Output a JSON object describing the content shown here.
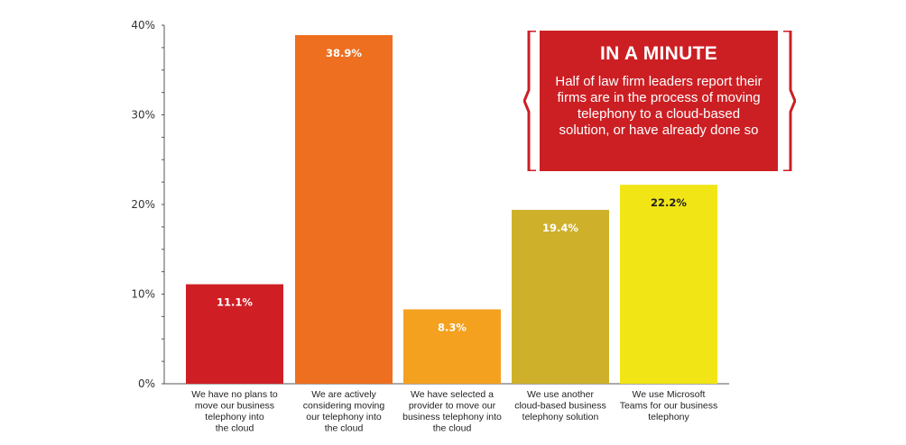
{
  "colors": {
    "bar1": "#cf1f25",
    "bar2": "#ed6f1f",
    "bar3": "#f4a11f",
    "bar4": "#cfb02b",
    "bar5": "#f1e516",
    "callout_bg": "#cc1f24",
    "axis": "#555555"
  },
  "callout": {
    "title": "IN A MINUTE",
    "text": "Half of law firm leaders report their firms are in the process of moving telephony to a cloud-based solution, or have already done so"
  },
  "chart_data": {
    "type": "bar",
    "categories": [
      [
        "We have no plans to",
        "move our business",
        "telephony into",
        "the cloud"
      ],
      [
        "We are actively",
        "considering moving",
        "our telephony into",
        "the cloud"
      ],
      [
        "We have selected a",
        "provider to move our",
        "business telephony into",
        "the cloud"
      ],
      [
        "We use another",
        "cloud-based business",
        "telephony solution"
      ],
      [
        "We use Microsoft",
        "Teams for our business",
        "telephony"
      ]
    ],
    "values": [
      11.1,
      38.9,
      8.3,
      19.4,
      22.2
    ],
    "value_labels": [
      "11.1%",
      "38.9%",
      "8.3%",
      "19.4%",
      "22.2%"
    ],
    "y_ticks": [
      0,
      10,
      20,
      30,
      40
    ],
    "y_tick_labels": [
      "0%",
      "10%",
      "20%",
      "30%",
      "40%"
    ],
    "ylim": [
      0,
      40
    ],
    "grid": false,
    "title": "",
    "xlabel": "",
    "ylabel": ""
  }
}
